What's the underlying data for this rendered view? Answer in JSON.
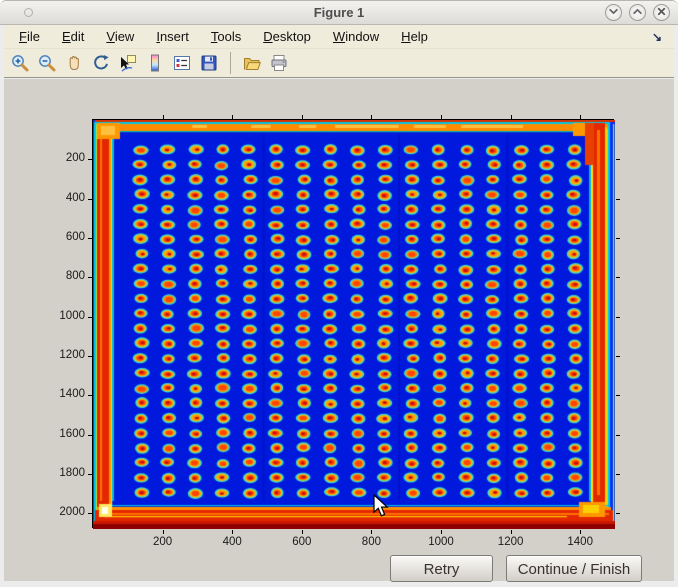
{
  "window": {
    "title": "Figure 1",
    "controls": [
      {
        "name": "minimize",
        "icon": "chevron-down-icon"
      },
      {
        "name": "maximize",
        "icon": "chevron-up-icon"
      },
      {
        "name": "close",
        "icon": "close-icon"
      }
    ]
  },
  "menubar": {
    "items": [
      {
        "label": "File"
      },
      {
        "label": "Edit"
      },
      {
        "label": "View"
      },
      {
        "label": "Insert"
      },
      {
        "label": "Tools"
      },
      {
        "label": "Desktop"
      },
      {
        "label": "Window"
      },
      {
        "label": "Help"
      }
    ],
    "dock_arrow": "↘"
  },
  "toolbar": {
    "icons": [
      {
        "name": "zoom-in"
      },
      {
        "name": "zoom-out"
      },
      {
        "name": "pan"
      },
      {
        "name": "rotate-3d"
      },
      {
        "name": "data-cursor"
      },
      {
        "name": "colorbar"
      },
      {
        "name": "insert-legend"
      },
      {
        "name": "save-figure"
      },
      {
        "separator": true
      },
      {
        "name": "open-file"
      },
      {
        "name": "print"
      }
    ]
  },
  "figure": {
    "axes": {
      "x_ticks": [
        200,
        400,
        600,
        800,
        1000,
        1200,
        1400
      ],
      "y_ticks": [
        200,
        400,
        600,
        800,
        1000,
        1200,
        1400,
        1600,
        1800,
        2000
      ],
      "x_range": [
        0,
        1500
      ],
      "y_range": [
        0,
        2080
      ]
    },
    "chart_data": {
      "type": "heatmap",
      "title": "",
      "xlabel": "",
      "ylabel": "",
      "colormap": "jet",
      "x_range": [
        0,
        1500
      ],
      "y_range": [
        0,
        2080
      ],
      "x_ticks": [
        200,
        400,
        600,
        800,
        1000,
        1200,
        1400
      ],
      "y_ticks": [
        200,
        400,
        600,
        800,
        1000,
        1200,
        1400,
        1600,
        1800,
        2000
      ],
      "grid": {
        "rows": 24,
        "cols": 17
      },
      "description": "Intensity image of a microarray/well plate: regular grid of hot spots (red-orange centers, yellow rings, cyan halos) on a cold deep-blue background, with hot red/orange bands along all four plate edges and bright corner artifacts",
      "background_value": "low (deep blue)",
      "spot_value": "high (red/orange centers)",
      "border_value": "high (red/orange edge bands)"
    },
    "image_colors": {
      "background": "#0019dc",
      "halo": "#38dcd4",
      "ring": "#ffb300",
      "ring_alt": "#ff9000",
      "center": "#ff4500",
      "core": "#c81010",
      "band_red": "#e32800",
      "band_orange": "#ff8c00",
      "edge_cyan": "#00c8e8",
      "edge_yellow": "#ffe000",
      "edge_green": "#a8e838",
      "bottom_dark": "#8f0000",
      "corner_bright": "#ffe860"
    }
  },
  "buttons": {
    "retry": "Retry",
    "continue": "Continue / Finish"
  },
  "colors": {
    "chrome": "#f0ecdc",
    "figure_background": "#d3d0c9",
    "frame": "#ececec"
  }
}
